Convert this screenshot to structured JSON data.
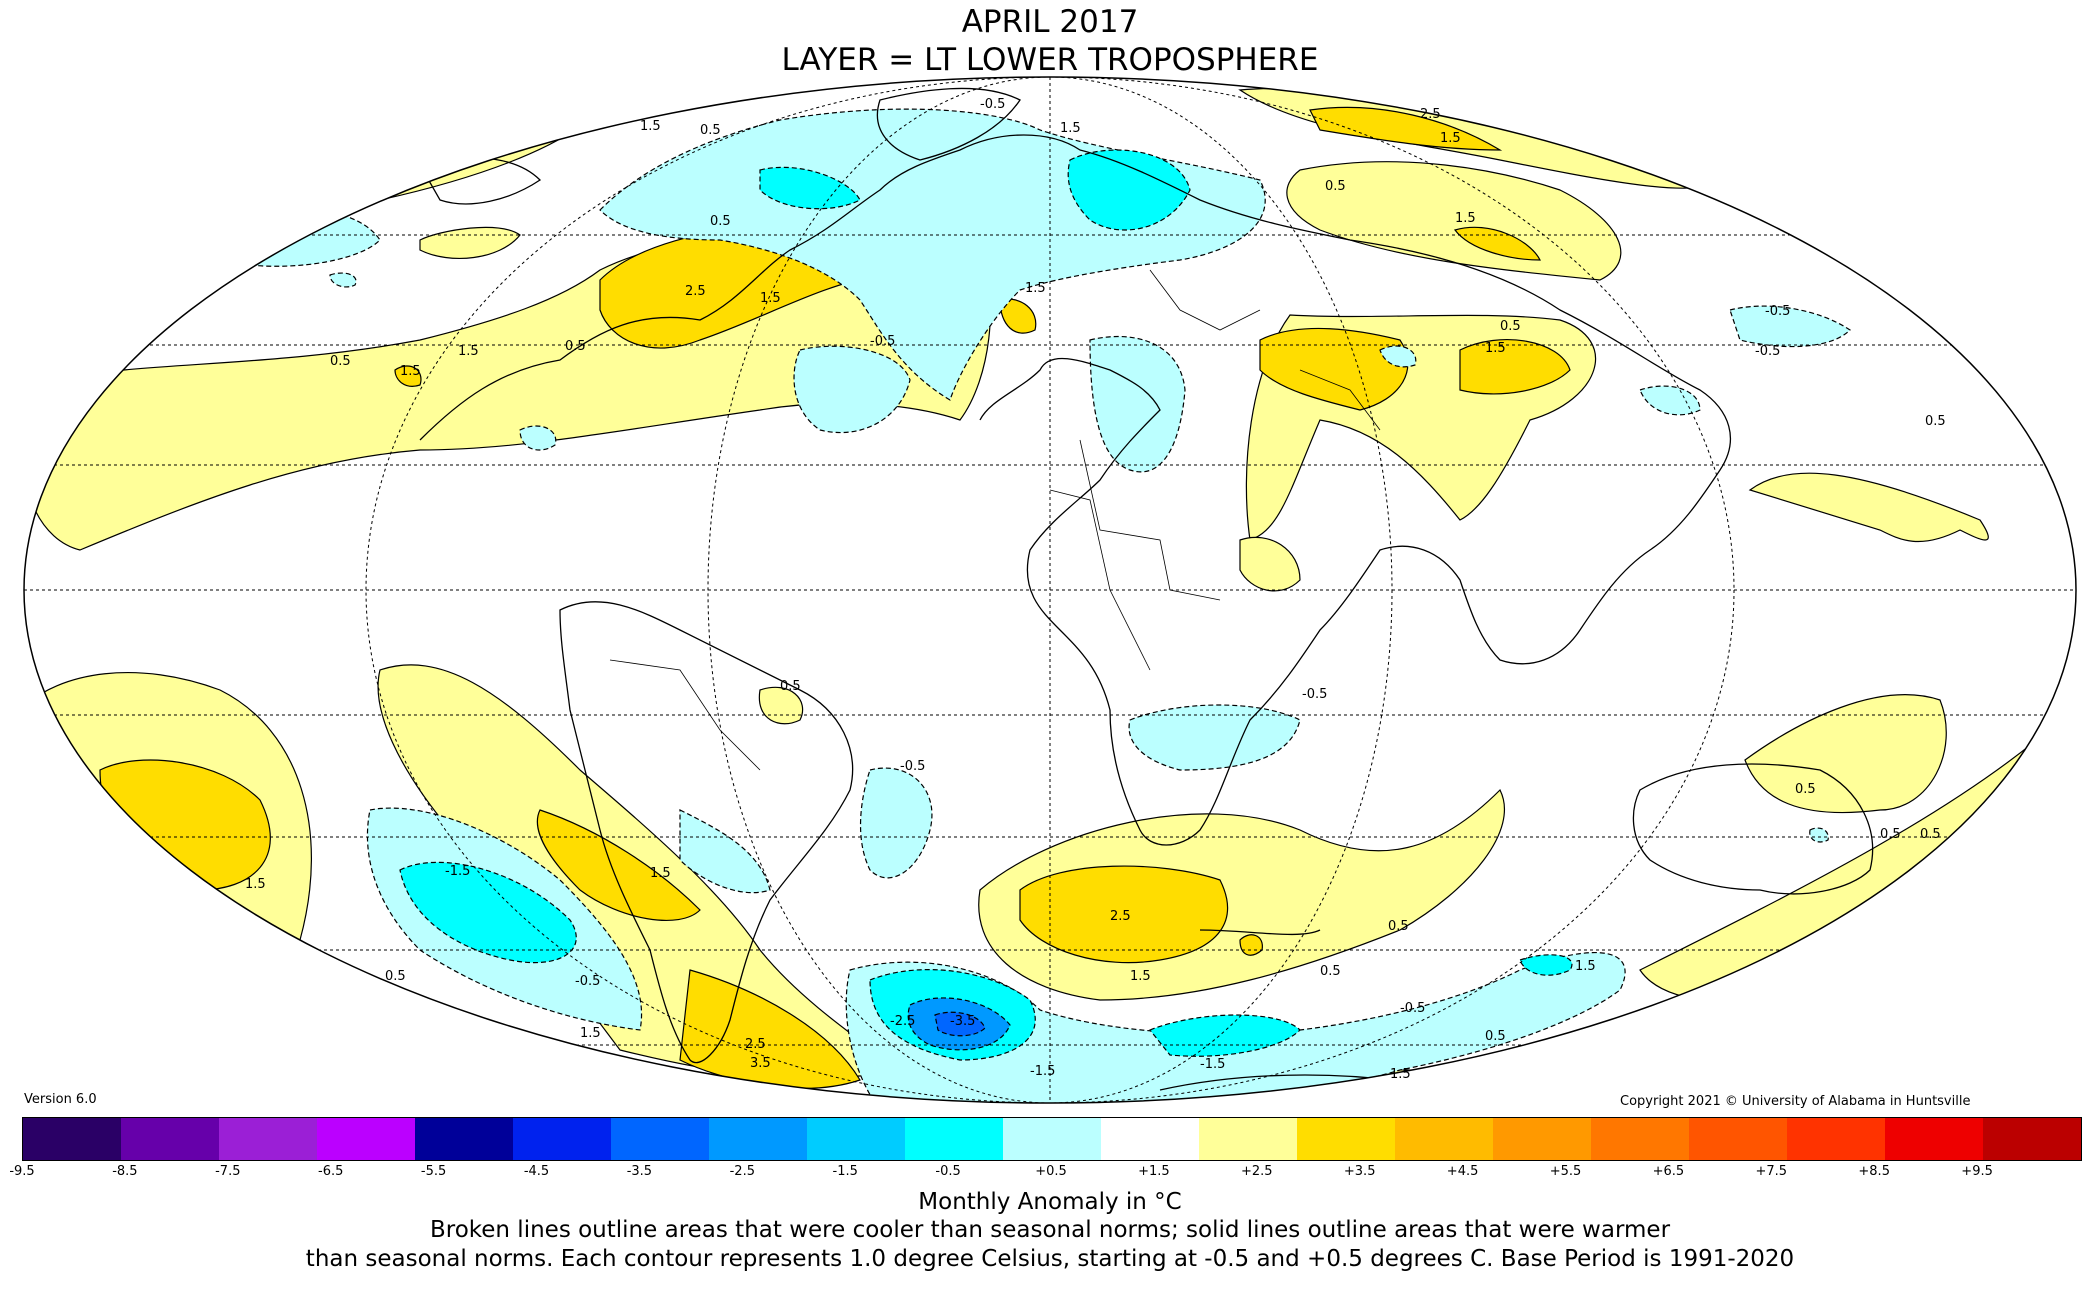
{
  "title_line1": "APRIL 2017",
  "title_line2": "LAYER = LT LOWER TROPOSPHERE",
  "version": "Version 6.0",
  "copyright": "Copyright 2021 © University of Alabama in Huntsville",
  "colorbar": {
    "colors": [
      "#2a0066",
      "#6600aa",
      "#9b1fd6",
      "#bb00ff",
      "#000099",
      "#0022ee",
      "#0066ff",
      "#0099ff",
      "#00ccff",
      "#00ffff",
      "#bbffff",
      "#ffffff",
      "#ffff99",
      "#ffdd00",
      "#ffbb00",
      "#ff9900",
      "#ff7700",
      "#ff5500",
      "#ff3300",
      "#ee0000",
      "#bb0000"
    ],
    "labels": [
      "-9.5",
      "-8.5",
      "-7.5",
      "-6.5",
      "-5.5",
      "-4.5",
      "-3.5",
      "-2.5",
      "-1.5",
      "-0.5",
      "+0.5",
      "+1.5",
      "+2.5",
      "+3.5",
      "+4.5",
      "+5.5",
      "+6.5",
      "+7.5",
      "+8.5",
      "+9.5"
    ]
  },
  "tick_labels": [
    "-9.5",
    "-8.5",
    "-7.5",
    "-6.5",
    "-5.5",
    "-4.5",
    "-3.5",
    "-2.5",
    "-1.5",
    "-0.5",
    "+0.5",
    "+1.5",
    "+2.5",
    "+3.5",
    "+4.5",
    "+5.5",
    "+6.5",
    "+7.5",
    "+8.5",
    "+9.5"
  ],
  "contour_labels": [
    "0.5",
    "1.5",
    "2.5",
    "3.5",
    "-0.5",
    "-1.5",
    "-2.5",
    "-3.5"
  ],
  "caption_line1": "Monthly Anomaly in °C",
  "caption_line2": "Broken lines outline areas that were cooler than seasonal norms; solid lines outline areas that were warmer",
  "caption_line3": "than seasonal norms. Each contour represents 1.0 degree Celsius, starting at -0.5 and +0.5 degrees C. Base Period is 1991-2020"
}
